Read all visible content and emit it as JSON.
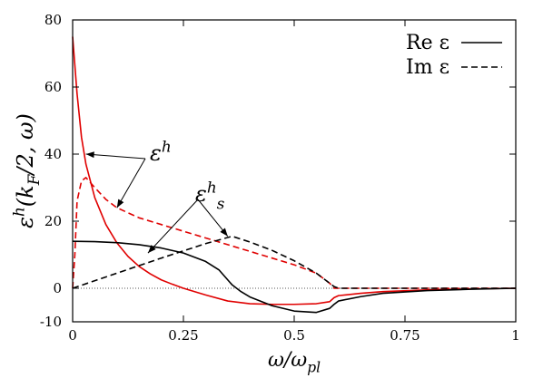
{
  "chart_data": {
    "type": "line",
    "xlabel": "ω/ω_pl",
    "ylabel": "ε^h(k_F/2, ω)",
    "xlim": [
      0,
      1
    ],
    "ylim": [
      -10,
      80
    ],
    "x_ticks": [
      "0",
      "0.25",
      "0.5",
      "0.75",
      "1"
    ],
    "y_ticks": [
      "-10",
      "0",
      "20",
      "40",
      "60",
      "80"
    ],
    "legend_position": "top-right",
    "legend": [
      {
        "label": "Re ε",
        "style": "solid"
      },
      {
        "label": "Im ε",
        "style": "dashed"
      }
    ],
    "annotations": [
      {
        "label": "ε^h",
        "targets": [
          [
            0.03,
            40
          ],
          [
            0.1,
            24
          ]
        ]
      },
      {
        "label": "ε^h_s",
        "targets": [
          [
            0.17,
            10.5
          ],
          [
            0.35,
            15.5
          ]
        ]
      }
    ],
    "reference_line": {
      "y": 0,
      "style": "dotted"
    },
    "series": [
      {
        "style": "solid",
        "color": "#e00000",
        "x": [
          0,
          0.01,
          0.02,
          0.03,
          0.05,
          0.075,
          0.1,
          0.125,
          0.15,
          0.175,
          0.2,
          0.225,
          0.25,
          0.3,
          0.35,
          0.4,
          0.45,
          0.5,
          0.55,
          0.58,
          0.59,
          0.6,
          0.65,
          0.7,
          0.8,
          0.9,
          1.0
        ],
        "y": [
          75,
          58,
          45,
          37,
          27,
          19,
          13.5,
          9.5,
          6.5,
          4.3,
          2.5,
          1.2,
          0,
          -2,
          -3.8,
          -4.6,
          -4.8,
          -4.8,
          -4.6,
          -4,
          -2.8,
          -2.2,
          -1.5,
          -1,
          -0.5,
          -0.2,
          0
        ]
      },
      {
        "style": "dashed",
        "color": "#e00000",
        "x": [
          0,
          0.005,
          0.01,
          0.02,
          0.03,
          0.05,
          0.075,
          0.1,
          0.15,
          0.2,
          0.25,
          0.3,
          0.35,
          0.4,
          0.45,
          0.5,
          0.55,
          0.58,
          0.59,
          0.6,
          0.7,
          0.8,
          0.9,
          1.0
        ],
        "y": [
          0,
          10,
          26,
          32,
          33,
          30,
          26.5,
          24,
          21,
          19,
          17,
          15,
          13,
          11,
          9,
          7,
          4.5,
          1.5,
          0,
          0,
          0,
          0,
          0,
          0
        ]
      },
      {
        "style": "solid",
        "color": "#000000",
        "x": [
          0,
          0.05,
          0.1,
          0.15,
          0.2,
          0.25,
          0.3,
          0.33,
          0.35,
          0.36,
          0.38,
          0.4,
          0.45,
          0.5,
          0.55,
          0.58,
          0.59,
          0.6,
          0.65,
          0.7,
          0.8,
          0.9,
          1.0
        ],
        "y": [
          14,
          13.9,
          13.6,
          13,
          12,
          10.5,
          8,
          5.5,
          2.5,
          1,
          -1,
          -2.6,
          -5.2,
          -6.8,
          -7.2,
          -6,
          -4.8,
          -3.8,
          -2.5,
          -1.5,
          -0.7,
          -0.3,
          0
        ]
      },
      {
        "style": "dashed",
        "color": "#000000",
        "x": [
          0,
          0.1,
          0.2,
          0.3,
          0.36,
          0.4,
          0.45,
          0.5,
          0.55,
          0.59,
          0.6,
          0.7,
          0.8,
          0.9,
          1.0
        ],
        "y": [
          0,
          4.5,
          9,
          13.3,
          15.5,
          13.8,
          11.3,
          8.2,
          4.5,
          0.5,
          0,
          0,
          0,
          0,
          0
        ]
      }
    ]
  }
}
